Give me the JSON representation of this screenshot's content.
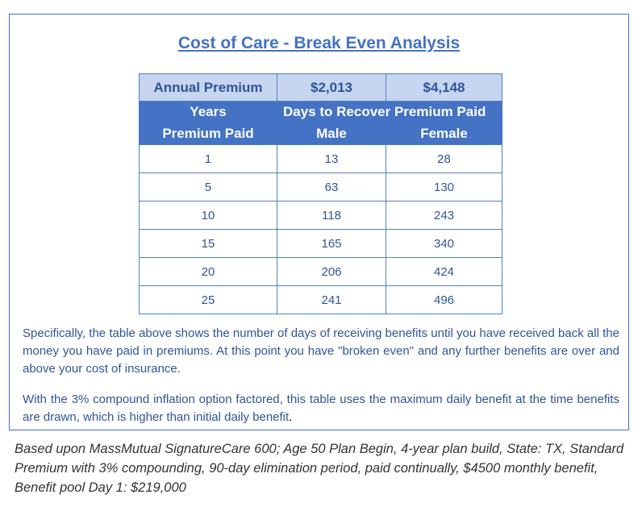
{
  "title": "Cost of Care - Break Even Analysis",
  "premium_row": {
    "label": "Annual Premium",
    "male": "$2,013",
    "female": "$4,148"
  },
  "header": {
    "col1_line1": "Years",
    "col1_line2": "Premium Paid",
    "span_label": "Days to Recover Premium Paid",
    "col2_line2": "Male",
    "col3_line2": "Female"
  },
  "rows": [
    {
      "years": "1",
      "male": "13",
      "female": "28"
    },
    {
      "years": "5",
      "male": "63",
      "female": "130"
    },
    {
      "years": "10",
      "male": "118",
      "female": "243"
    },
    {
      "years": "15",
      "male": "165",
      "female": "340"
    },
    {
      "years": "20",
      "male": "206",
      "female": "424"
    },
    {
      "years": "25",
      "male": "241",
      "female": "496"
    }
  ],
  "paragraph1": "Specifically, the table above shows the number of days of receiving benefits until you have received back all the money you have paid in premiums. At this point you have \"broken even\" and any further benefits are over and above your cost of insurance.",
  "paragraph2": "With the 3% compound inflation option factored, this table uses the maximum daily benefit at the time benefits are drawn, which is higher than initial daily benefit",
  "paragraph2_end": ".",
  "footnote": "Based upon MassMutual SignatureCare 600; Age 50 Plan Begin, 4-year plan build, State: TX, Standard Premium with 3% compounding, 90-day elimination period, paid continually, $4500 monthly benefit, Benefit pool Day 1: $219,000",
  "colors": {
    "accent": "#4472c4",
    "header_light": "#c6d5f0",
    "text_blue": "#2e5597"
  }
}
